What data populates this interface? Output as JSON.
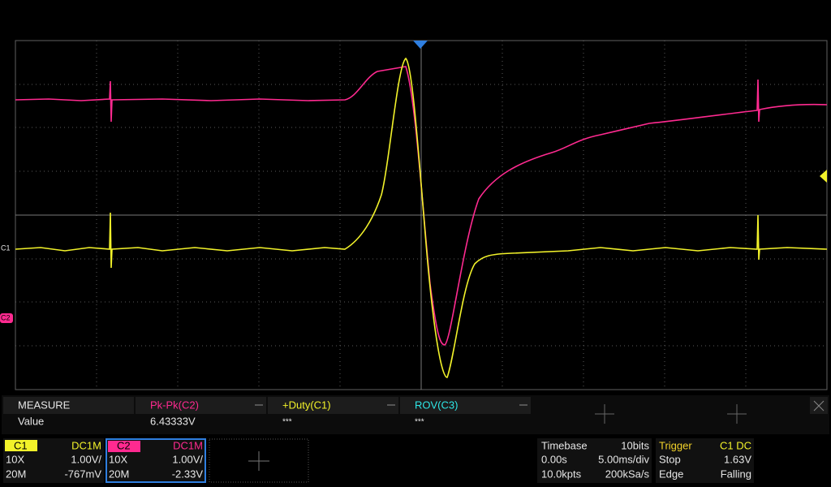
{
  "screen": {
    "markers": {
      "c1": "C1",
      "c2": "C2"
    },
    "measure": {
      "title": "MEASURE",
      "row_label": "Value",
      "items": [
        {
          "name": "Pk-Pk(C2)",
          "value": "6.43333V"
        },
        {
          "name": "+Duty(C1)",
          "value": "***"
        },
        {
          "name": "ROV(C3)",
          "value": "***"
        }
      ]
    },
    "channels": [
      {
        "name": "C1",
        "coupling": "DC1M",
        "probe": "10X",
        "scale": "1.00V/",
        "bandwidth": "20M",
        "offset": "-767mV"
      },
      {
        "name": "C2",
        "coupling": "DC1M",
        "probe": "10X",
        "scale": "1.00V/",
        "bandwidth": "20M",
        "offset": "-2.33V"
      }
    ],
    "timebase": {
      "label": "Timebase",
      "bits": "10bits",
      "delay": "0.00s",
      "scale": "5.00ms/div",
      "points": "10.0kpts",
      "rate": "200kSa/s"
    },
    "trigger": {
      "label": "Trigger",
      "source": "C1 DC",
      "state": "Stop",
      "level": "1.63V",
      "type": "Edge",
      "slope": "Falling"
    }
  }
}
